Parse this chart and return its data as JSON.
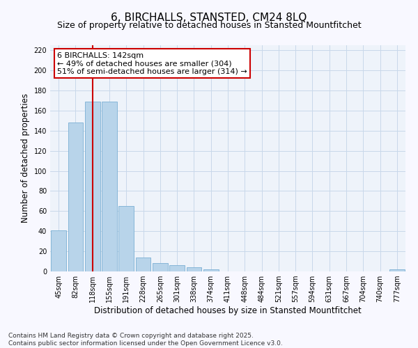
{
  "title": "6, BIRCHALLS, STANSTED, CM24 8LQ",
  "subtitle": "Size of property relative to detached houses in Stansted Mountfitchet",
  "xlabel": "Distribution of detached houses by size in Stansted Mountfitchet",
  "ylabel": "Number of detached properties",
  "categories": [
    "45sqm",
    "82sqm",
    "118sqm",
    "155sqm",
    "191sqm",
    "228sqm",
    "265sqm",
    "301sqm",
    "338sqm",
    "374sqm",
    "411sqm",
    "448sqm",
    "484sqm",
    "521sqm",
    "557sqm",
    "594sqm",
    "631sqm",
    "667sqm",
    "704sqm",
    "740sqm",
    "777sqm"
  ],
  "values": [
    41,
    148,
    169,
    169,
    65,
    14,
    8,
    6,
    4,
    2,
    0,
    0,
    0,
    0,
    0,
    0,
    0,
    0,
    0,
    0,
    2
  ],
  "bar_color": "#b8d4ea",
  "bar_edge_color": "#7aafd4",
  "grid_color": "#c8d8ea",
  "background_color": "#f8f8ff",
  "plot_bg_color": "#eef3fa",
  "vline_x_index": 2,
  "vline_color": "#cc0000",
  "annotation_line1": "6 BIRCHALLS: 142sqm",
  "annotation_line2": "← 49% of detached houses are smaller (304)",
  "annotation_line3": "51% of semi-detached houses are larger (314) →",
  "annotation_box_color": "#ffffff",
  "annotation_box_edge": "#cc0000",
  "ylim": [
    0,
    225
  ],
  "yticks": [
    0,
    20,
    40,
    60,
    80,
    100,
    120,
    140,
    160,
    180,
    200,
    220
  ],
  "footer": "Contains HM Land Registry data © Crown copyright and database right 2025.\nContains public sector information licensed under the Open Government Licence v3.0.",
  "title_fontsize": 11,
  "subtitle_fontsize": 9,
  "xlabel_fontsize": 8.5,
  "ylabel_fontsize": 8.5,
  "tick_fontsize": 7,
  "annotation_fontsize": 8,
  "footer_fontsize": 6.5
}
